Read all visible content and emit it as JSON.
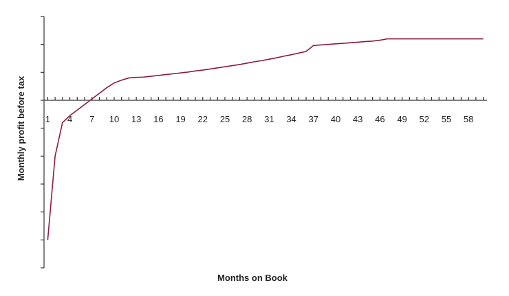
{
  "chart_data": {
    "type": "line",
    "xlabel": "Months on Book",
    "ylabel": "Monthly profit before tax",
    "x_tick_labels": [
      1,
      4,
      7,
      10,
      13,
      16,
      19,
      22,
      25,
      28,
      31,
      34,
      37,
      40,
      43,
      46,
      49,
      52,
      55,
      58
    ],
    "xlim": [
      0.5,
      60.5
    ],
    "ylim": [
      -6,
      3
    ],
    "y_tick_count": 10,
    "grid": false,
    "colors": {
      "line": "#8b1a45",
      "axis": "#333333"
    },
    "series": [
      {
        "x": [
          1,
          2,
          3,
          4,
          5,
          6,
          7,
          8,
          9,
          10,
          11,
          12,
          13,
          14,
          15,
          16,
          17,
          18,
          19,
          20,
          21,
          22,
          23,
          24,
          25,
          26,
          27,
          28,
          29,
          30,
          31,
          32,
          33,
          34,
          35,
          36,
          37,
          38,
          39,
          40,
          41,
          42,
          43,
          44,
          45,
          46,
          47,
          48,
          49,
          50,
          51,
          52,
          53,
          54,
          55,
          56,
          57,
          58,
          59,
          60
        ],
        "y": [
          -5.0,
          -2.0,
          -0.8,
          -0.55,
          -0.35,
          -0.15,
          0.05,
          0.25,
          0.45,
          0.62,
          0.72,
          0.8,
          0.82,
          0.83,
          0.86,
          0.89,
          0.92,
          0.95,
          0.98,
          1.01,
          1.05,
          1.08,
          1.12,
          1.16,
          1.2,
          1.24,
          1.28,
          1.33,
          1.38,
          1.42,
          1.47,
          1.52,
          1.58,
          1.63,
          1.69,
          1.75,
          1.96,
          1.98,
          2.0,
          2.02,
          2.04,
          2.06,
          2.08,
          2.1,
          2.12,
          2.15,
          2.2,
          2.2,
          2.2,
          2.2,
          2.2,
          2.2,
          2.2,
          2.2,
          2.2,
          2.2,
          2.2,
          2.2,
          2.2,
          2.2
        ]
      }
    ]
  }
}
